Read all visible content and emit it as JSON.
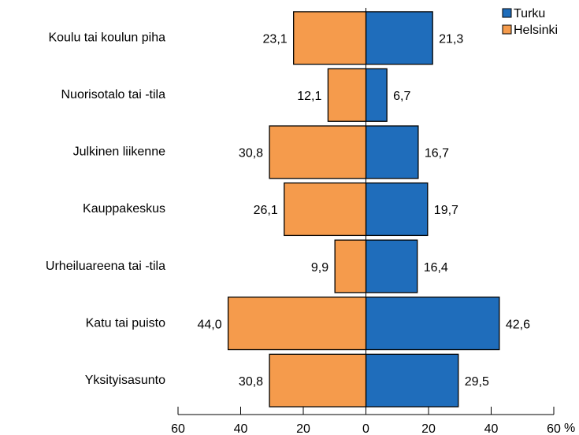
{
  "chart_data": {
    "type": "butterfly",
    "categories": [
      "Koulu tai koulun piha",
      "Nuorisotalo tai -tila",
      "Julkinen liikenne",
      "Kauppakeskus",
      "Urheiluareena tai -tila",
      "Katu tai puisto",
      "Yksityisasunto"
    ],
    "series": [
      {
        "name": "Turku",
        "color": "#1f6dbb",
        "side": "right",
        "values": [
          21.3,
          6.7,
          16.7,
          19.7,
          16.4,
          42.6,
          29.5
        ],
        "value_labels": [
          "21,3",
          "6,7",
          "16,7",
          "19,7",
          "16,4",
          "42,6",
          "29,5"
        ]
      },
      {
        "name": "Helsinki",
        "color": "#f59b4c",
        "side": "left",
        "values": [
          23.1,
          12.1,
          30.8,
          26.1,
          9.9,
          44.0,
          30.8
        ],
        "value_labels": [
          "23,1",
          "12,1",
          "30,8",
          "26,1",
          "9,9",
          "44,0",
          "30,8"
        ]
      }
    ],
    "xlim": [
      -60,
      60
    ],
    "xticks": [
      {
        "value": -60,
        "label": "60"
      },
      {
        "value": -40,
        "label": "40"
      },
      {
        "value": -20,
        "label": "20"
      },
      0,
      20,
      40,
      60
    ],
    "xlabel": "%",
    "legend": "top-right"
  }
}
